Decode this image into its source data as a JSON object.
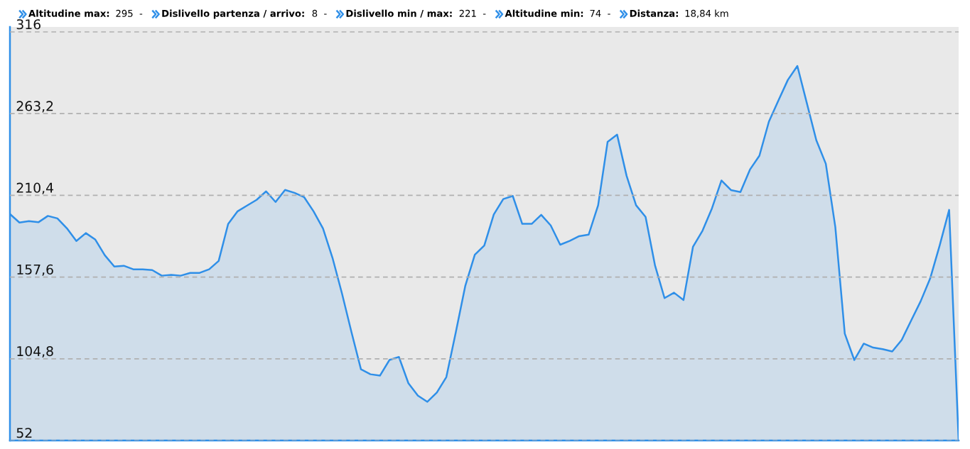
{
  "chart_data": {
    "type": "area",
    "annotations": [
      "Altitudine max: 295  -",
      "Dislivello partenza / arrivo: 8  -",
      "Dislivello min / max: 221  -",
      "Altitudine min: 74  -",
      "Distanza: 18,84 km"
    ],
    "categories": [
      null,
      null,
      null,
      null,
      null,
      null,
      null,
      null,
      null,
      null,
      null,
      null,
      null,
      null,
      null,
      null,
      null,
      null,
      null,
      null,
      null,
      null,
      null,
      null,
      null,
      null,
      null,
      null,
      null,
      null,
      null,
      null,
      null,
      null,
      null,
      null,
      null,
      null,
      null,
      null,
      null,
      null,
      null,
      null,
      null,
      null,
      null,
      null,
      null,
      null,
      null,
      null,
      null,
      null,
      null,
      null,
      null,
      null,
      null,
      null,
      null,
      null,
      null,
      null,
      null,
      null,
      null,
      null,
      null,
      null,
      null,
      null,
      null,
      null,
      null,
      null,
      null,
      null,
      null,
      null,
      null,
      null,
      null,
      null,
      null,
      null,
      null,
      null,
      null,
      null,
      null,
      null,
      null,
      null,
      null,
      null,
      null,
      null,
      null,
      null,
      null
    ],
    "series": [
      {
        "color": "#2f8fe8",
        "values": [
          198.3,
          192.8,
          193.7,
          193,
          197.1,
          195.5,
          189.1,
          180.9,
          186,
          181.8,
          171.7,
          164.4,
          164.9,
          162.6,
          162.6,
          162.1,
          158.5,
          159,
          158.5,
          160.3,
          160.3,
          162.6,
          168,
          191.9,
          200.1,
          203.8,
          207.5,
          213,
          206.1,
          213.9,
          212,
          209.3,
          200.1,
          189,
          170,
          147,
          122,
          98,
          94.8,
          93.9,
          104,
          106,
          89,
          81,
          77,
          83,
          93,
          122,
          152,
          172,
          178,
          198,
          208,
          210,
          192,
          192,
          197.8,
          191,
          178.5,
          181,
          184,
          185,
          204,
          245,
          249.6,
          223,
          204,
          196.5,
          165,
          144,
          147.5,
          142.8,
          177.2,
          187.5,
          202,
          220,
          213.8,
          212.5,
          227,
          236,
          258,
          271.6,
          285,
          294,
          270,
          246,
          230.8,
          190,
          121,
          104,
          114.6,
          112,
          111,
          109.5,
          117,
          129.6,
          142,
          156.7,
          178,
          201,
          52
        ]
      }
    ],
    "ylim": [
      52,
      319.2
    ],
    "yticks": [
      {
        "value": 52,
        "label": "52"
      },
      {
        "value": 104.8,
        "label": "104,8"
      },
      {
        "value": 157.6,
        "label": "157,6"
      },
      {
        "value": 210.4,
        "label": "210,4"
      },
      {
        "value": 263.2,
        "label": "263,2"
      },
      {
        "value": 316,
        "label": "316"
      }
    ],
    "grid": "y",
    "line_style": "solid"
  }
}
